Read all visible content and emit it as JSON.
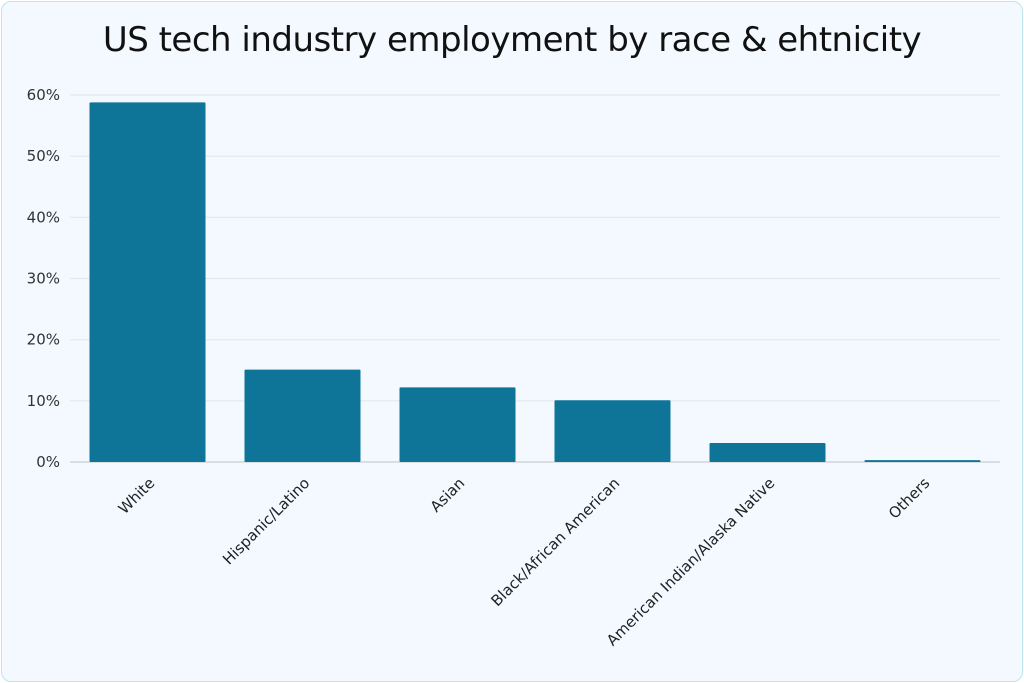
{
  "chart_data": {
    "type": "bar",
    "title": "US tech industry employment by race & ehtnicity",
    "categories": [
      "White",
      "Hispanic/Latino",
      "Asian",
      "Black/African American",
      "American Indian/Alaska Native",
      "Others"
    ],
    "values": [
      58.8,
      15.1,
      12.2,
      10.1,
      3.1,
      0.3
    ],
    "unit": "%",
    "ylim": [
      0,
      60
    ],
    "yticks": [
      "0%",
      "10%",
      "20%",
      "30%",
      "40%",
      "50%",
      "60%"
    ],
    "grid": true,
    "bar_color": "#0e7598"
  }
}
